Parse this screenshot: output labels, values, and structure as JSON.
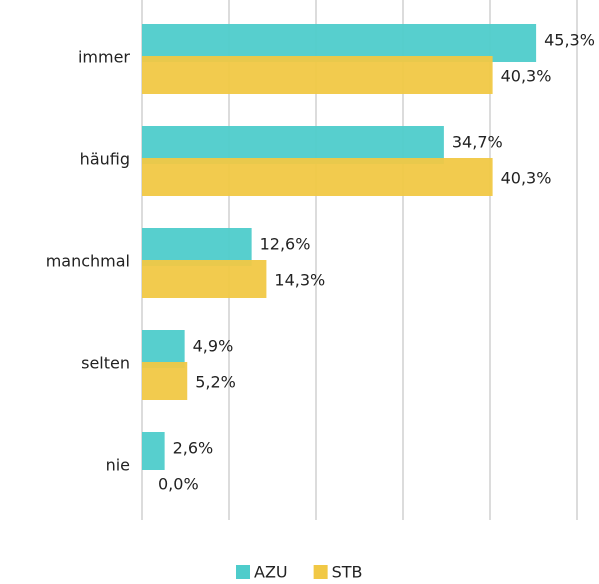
{
  "chart_data": {
    "type": "bar",
    "orientation": "horizontal",
    "categories": [
      "immer",
      "häufig",
      "manchmal",
      "selten",
      "nie"
    ],
    "series": [
      {
        "name": "AZU",
        "color": "#4ecccb",
        "values": [
          45.3,
          34.7,
          12.6,
          4.9,
          2.6
        ],
        "value_labels": [
          "45,3%",
          "34,7%",
          "12,6%",
          "4,9%",
          "2,6%"
        ]
      },
      {
        "name": "STB",
        "color": "#f1c845",
        "values": [
          40.3,
          40.3,
          14.3,
          5.2,
          0.0
        ],
        "value_labels": [
          "40,3%",
          "40,3%",
          "14,3%",
          "5,2%",
          "0,0%"
        ]
      }
    ],
    "xlim": [
      0,
      50
    ],
    "xticks": [
      0,
      10,
      20,
      30,
      40,
      50
    ],
    "grid": true,
    "legend": "bottom"
  }
}
